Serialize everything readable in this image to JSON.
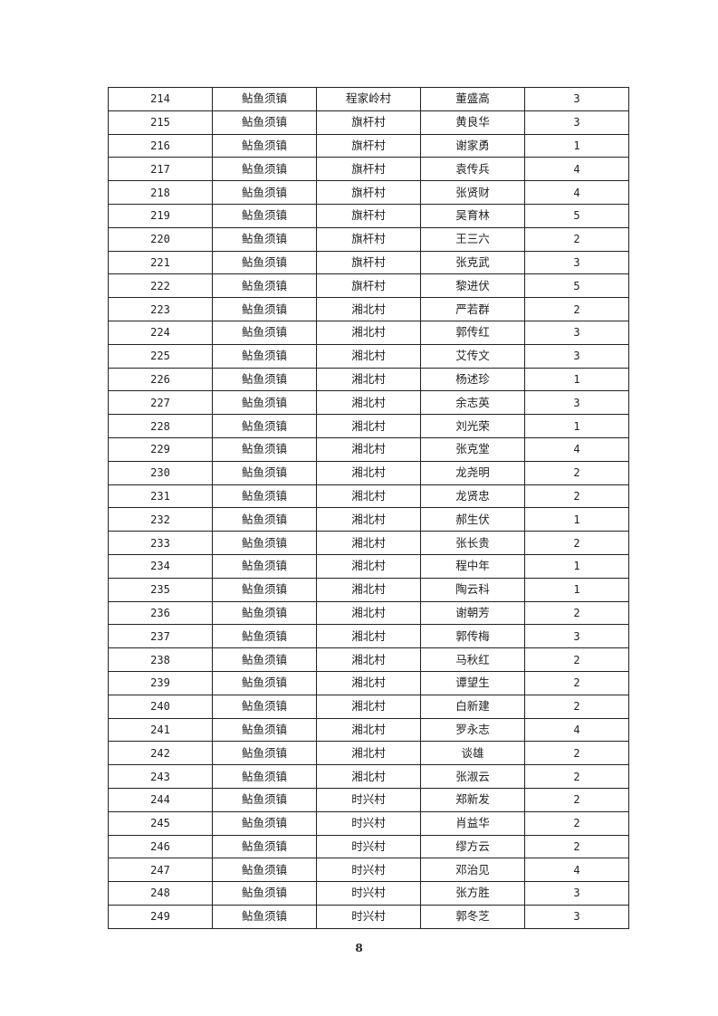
{
  "table": {
    "rows": [
      [
        "214",
        "鲇鱼须镇",
        "程家岭村",
        "董盛高",
        "3"
      ],
      [
        "215",
        "鲇鱼须镇",
        "旗杆村",
        "黄良华",
        "3"
      ],
      [
        "216",
        "鲇鱼须镇",
        "旗杆村",
        "谢家勇",
        "1"
      ],
      [
        "217",
        "鲇鱼须镇",
        "旗杆村",
        "袁传兵",
        "4"
      ],
      [
        "218",
        "鲇鱼须镇",
        "旗杆村",
        "张贤财",
        "4"
      ],
      [
        "219",
        "鲇鱼须镇",
        "旗杆村",
        "吴育林",
        "5"
      ],
      [
        "220",
        "鲇鱼须镇",
        "旗杆村",
        "王三六",
        "2"
      ],
      [
        "221",
        "鲇鱼须镇",
        "旗杆村",
        "张克武",
        "3"
      ],
      [
        "222",
        "鲇鱼须镇",
        "旗杆村",
        "黎进伏",
        "5"
      ],
      [
        "223",
        "鲇鱼须镇",
        "湘北村",
        "严若群",
        "2"
      ],
      [
        "224",
        "鲇鱼须镇",
        "湘北村",
        "郭传红",
        "3"
      ],
      [
        "225",
        "鲇鱼须镇",
        "湘北村",
        "艾传文",
        "3"
      ],
      [
        "226",
        "鲇鱼须镇",
        "湘北村",
        "杨述珍",
        "1"
      ],
      [
        "227",
        "鲇鱼须镇",
        "湘北村",
        "余志英",
        "3"
      ],
      [
        "228",
        "鲇鱼须镇",
        "湘北村",
        "刘光荣",
        "1"
      ],
      [
        "229",
        "鲇鱼须镇",
        "湘北村",
        "张克堂",
        "4"
      ],
      [
        "230",
        "鲇鱼须镇",
        "湘北村",
        "龙尧明",
        "2"
      ],
      [
        "231",
        "鲇鱼须镇",
        "湘北村",
        "龙贤忠",
        "2"
      ],
      [
        "232",
        "鲇鱼须镇",
        "湘北村",
        "郝生伏",
        "1"
      ],
      [
        "233",
        "鲇鱼须镇",
        "湘北村",
        "张长贵",
        "2"
      ],
      [
        "234",
        "鲇鱼须镇",
        "湘北村",
        "程中年",
        "1"
      ],
      [
        "235",
        "鲇鱼须镇",
        "湘北村",
        "陶云科",
        "1"
      ],
      [
        "236",
        "鲇鱼须镇",
        "湘北村",
        "谢朝芳",
        "2"
      ],
      [
        "237",
        "鲇鱼须镇",
        "湘北村",
        "郭传梅",
        "3"
      ],
      [
        "238",
        "鲇鱼须镇",
        "湘北村",
        "马秋红",
        "2"
      ],
      [
        "239",
        "鲇鱼须镇",
        "湘北村",
        "谭望生",
        "2"
      ],
      [
        "240",
        "鲇鱼须镇",
        "湘北村",
        "白新建",
        "2"
      ],
      [
        "241",
        "鲇鱼须镇",
        "湘北村",
        "罗永志",
        "4"
      ],
      [
        "242",
        "鲇鱼须镇",
        "湘北村",
        "谈雄",
        "2"
      ],
      [
        "243",
        "鲇鱼须镇",
        "湘北村",
        "张淑云",
        "2"
      ],
      [
        "244",
        "鲇鱼须镇",
        "时兴村",
        "郑新发",
        "2"
      ],
      [
        "245",
        "鲇鱼须镇",
        "时兴村",
        "肖益华",
        "2"
      ],
      [
        "246",
        "鲇鱼须镇",
        "时兴村",
        "缪方云",
        "2"
      ],
      [
        "247",
        "鲇鱼须镇",
        "时兴村",
        "邓治见",
        "4"
      ],
      [
        "248",
        "鲇鱼须镇",
        "时兴村",
        "张方胜",
        "3"
      ],
      [
        "249",
        "鲇鱼须镇",
        "时兴村",
        "郭冬芝",
        "3"
      ]
    ]
  },
  "page_number": "8"
}
